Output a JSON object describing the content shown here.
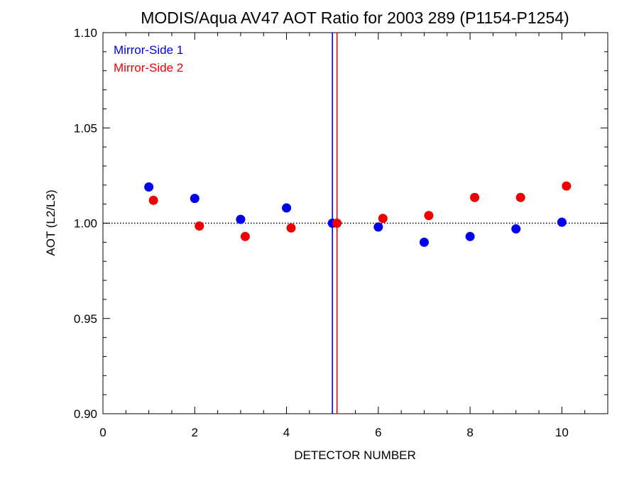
{
  "chart_data": {
    "type": "scatter",
    "title": "MODIS/Aqua AV47 AOT Ratio for 2003 289 (P1154-P1254)",
    "xlabel": "DETECTOR NUMBER",
    "ylabel": "AOT (L2/L3)",
    "xlim": [
      0,
      11
    ],
    "ylim": [
      0.9,
      1.1
    ],
    "xticks": [
      0,
      2,
      4,
      6,
      8,
      10
    ],
    "xtick_labels": [
      "0",
      "2",
      "4",
      "6",
      "8",
      "10"
    ],
    "yticks": [
      0.9,
      0.95,
      1.0,
      1.05,
      1.1
    ],
    "ytick_labels": [
      "0.90",
      "0.95",
      "1.00",
      "1.05",
      "1.10"
    ],
    "reference_line_y": 1.0,
    "legend_position": "top-left",
    "series": [
      {
        "name": "Mirror-Side 1",
        "color": "#0000ee",
        "x": [
          1,
          2,
          3,
          4,
          5,
          6,
          7,
          8,
          9,
          10
        ],
        "y": [
          1.019,
          1.013,
          1.002,
          1.008,
          1.0,
          0.998,
          0.99,
          0.993,
          0.997,
          1.0005
        ],
        "vline_x": 5.0
      },
      {
        "name": "Mirror-Side 2",
        "color": "#ee0000",
        "x": [
          1.1,
          2.1,
          3.1,
          4.1,
          5.1,
          6.1,
          7.1,
          8.1,
          9.1,
          10.1
        ],
        "y": [
          1.012,
          0.9985,
          0.993,
          0.9975,
          1.0,
          1.0025,
          1.004,
          1.0135,
          1.0135,
          1.0195
        ],
        "vline_x": 5.1
      }
    ]
  }
}
